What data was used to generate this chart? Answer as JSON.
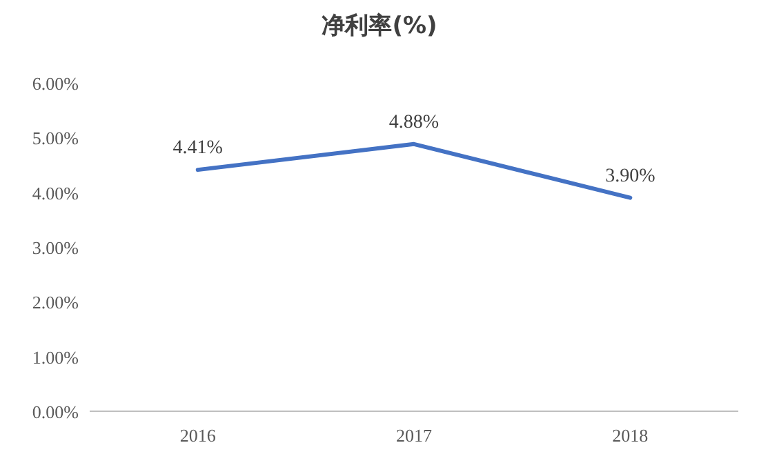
{
  "chart_data": {
    "type": "line",
    "title": "净利率(%)",
    "categories": [
      "2016",
      "2017",
      "2018"
    ],
    "values": [
      4.41,
      4.88,
      3.9
    ],
    "color": "#4472c4",
    "value_labels": [
      "4.41%",
      "4.88%",
      "3.90%"
    ],
    "ylim": [
      0,
      6
    ],
    "yticks": [
      {
        "value": 0,
        "label": "0.00%"
      },
      {
        "value": 1,
        "label": "1.00%"
      },
      {
        "value": 2,
        "label": "2.00%"
      },
      {
        "value": 3,
        "label": "3.00%"
      },
      {
        "value": 4,
        "label": "4.00%"
      },
      {
        "value": 5,
        "label": "5.00%"
      },
      {
        "value": 6,
        "label": "6.00%"
      }
    ]
  }
}
